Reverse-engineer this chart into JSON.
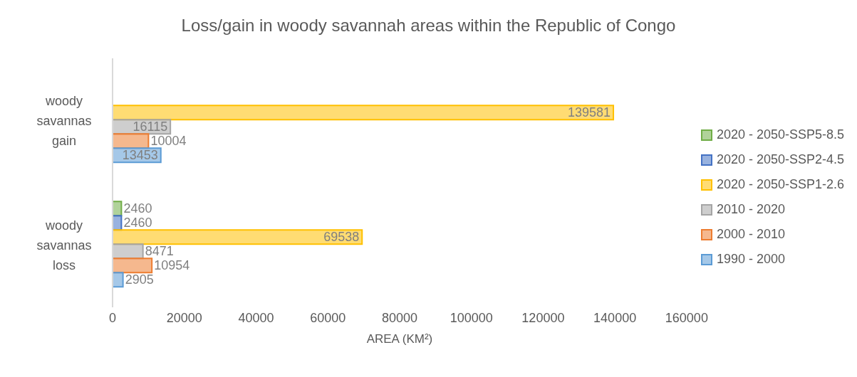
{
  "chart_data": {
    "type": "bar",
    "orientation": "horizontal",
    "title": "Loss/gain in woody savannah areas within the Republic of Congo",
    "xlabel": "AREA (KM²)",
    "categories": [
      "woody savannas gain",
      "woody savannas loss"
    ],
    "series": [
      {
        "name": "2020 - 2050-SSP5-8.5",
        "color": "#70ad47",
        "values": [
          null,
          2460
        ]
      },
      {
        "name": "2020 - 2050-SSP2-4.5",
        "color": "#4472c4",
        "values": [
          null,
          2460
        ]
      },
      {
        "name": "2020 - 2050-SSP1-2.6",
        "color": "#ffc000",
        "values": [
          139581,
          69538
        ]
      },
      {
        "name": "2010 - 2020",
        "color": "#a5a5a5",
        "values": [
          16115,
          8471
        ]
      },
      {
        "name": "2000 - 2010",
        "color": "#ed7d31",
        "values": [
          10004,
          10954
        ]
      },
      {
        "name": "1990 - 2000",
        "color": "#5b9bd5",
        "values": [
          13453,
          2905
        ]
      }
    ],
    "xlim": [
      0,
      160000
    ],
    "xticks": [
      0,
      20000,
      40000,
      60000,
      80000,
      100000,
      120000,
      140000,
      160000
    ],
    "data_labels": true,
    "legend": "right",
    "grid": false
  }
}
